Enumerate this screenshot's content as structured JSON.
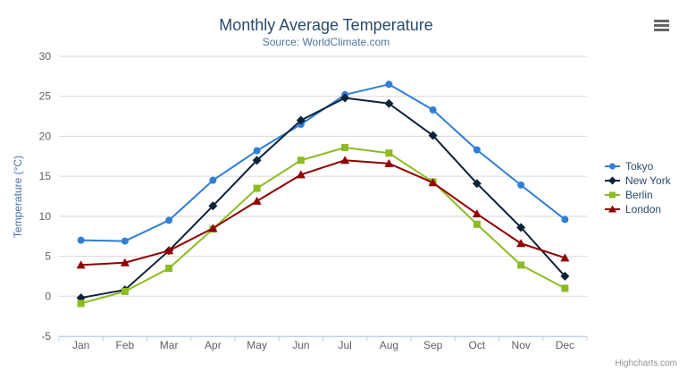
{
  "header": {
    "title": "Monthly Average Temperature",
    "subtitle": "Source: WorldClimate.com"
  },
  "credits_label": "Highcharts.com",
  "icons": {
    "menu": "hamburger-menu-icon"
  },
  "colors": {
    "title": "#274b6d",
    "subtitle": "#4d759e",
    "axis_label": "#606060",
    "axis_title": "#4572a7",
    "grid_line": "#d8d8d8",
    "axis_line": "#c0d0e0",
    "legend_text": "#274b6d",
    "credits": "#909090",
    "menu_icon": "#666666"
  },
  "chart_data": {
    "type": "line",
    "title": "Monthly Average Temperature",
    "subtitle": "Source: WorldClimate.com",
    "categories": [
      "Jan",
      "Feb",
      "Mar",
      "Apr",
      "May",
      "Jun",
      "Jul",
      "Aug",
      "Sep",
      "Oct",
      "Nov",
      "Dec"
    ],
    "xlabel": "",
    "ylabel": "Temperature (°C)",
    "ylim": [
      -5,
      30
    ],
    "ytick_interval": 5,
    "grid": true,
    "legend_position": "right",
    "series": [
      {
        "name": "Tokyo",
        "color": "#2f7ed8",
        "marker": "circle",
        "values": [
          7.0,
          6.9,
          9.5,
          14.5,
          18.2,
          21.5,
          25.2,
          26.5,
          23.3,
          18.3,
          13.9,
          9.6
        ]
      },
      {
        "name": "New York",
        "color": "#0d233a",
        "marker": "diamond",
        "values": [
          -0.2,
          0.8,
          5.7,
          11.3,
          17.0,
          22.0,
          24.8,
          24.1,
          20.1,
          14.1,
          8.6,
          2.5
        ]
      },
      {
        "name": "Berlin",
        "color": "#8bbc21",
        "marker": "square",
        "values": [
          -0.9,
          0.6,
          3.5,
          8.4,
          13.5,
          17.0,
          18.6,
          17.9,
          14.3,
          9.0,
          3.9,
          1.0
        ]
      },
      {
        "name": "London",
        "color": "#910000",
        "marker": "triangle",
        "values": [
          3.9,
          4.2,
          5.7,
          8.5,
          11.9,
          15.2,
          17.0,
          16.6,
          14.2,
          10.3,
          6.6,
          4.8
        ]
      }
    ]
  }
}
